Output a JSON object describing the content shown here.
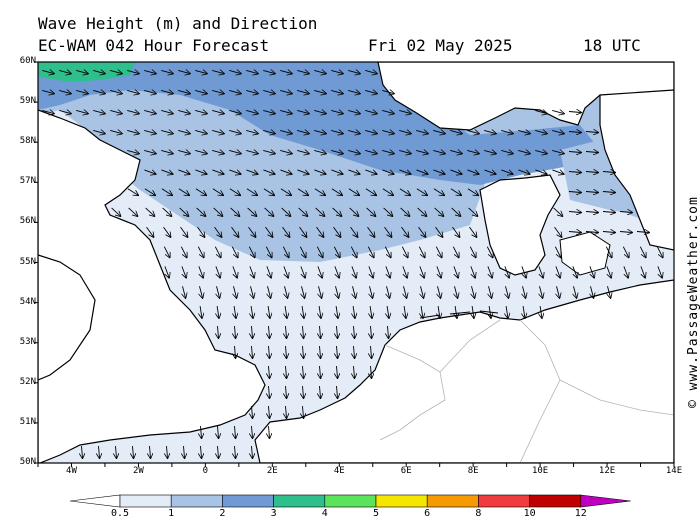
{
  "header": {
    "title": "Wave Height (m) and Direction",
    "model": "EC-WAM 042 Hour Forecast",
    "date": "Fri 02 May 2025",
    "time": "18 UTC"
  },
  "map": {
    "lat_labels": [
      "60N",
      "59N",
      "58N",
      "57N",
      "56N",
      "55N",
      "54N",
      "53N",
      "52N",
      "51N",
      "50N"
    ],
    "lon_labels": [
      "4W",
      "2W",
      "0",
      "2E",
      "4E",
      "6E",
      "8E",
      "10E",
      "12E",
      "14E"
    ],
    "extent": {
      "lon_min": -5,
      "lon_max": 14,
      "lat_min": 50,
      "lat_max": 60
    },
    "colors": {
      "sea_lightest": "#e4ecf7",
      "sea_light": "#a9c3e4",
      "sea_mid": "#6f9ad4",
      "sea_teal": "#2ebf8c",
      "land": "#ffffff",
      "coast": "#000000",
      "border": "#b4b4b4"
    }
  },
  "colorbar": {
    "ticks": [
      "0.5",
      "1",
      "2",
      "3",
      "4",
      "5",
      "6",
      "8",
      "10",
      "12"
    ],
    "colors": [
      "#e4ecf7",
      "#a9c3e4",
      "#6f9ad4",
      "#2ebf8c",
      "#5be35b",
      "#f5e600",
      "#f59a00",
      "#f03c3c",
      "#c00000",
      "#c000c0"
    ]
  },
  "copyright": "© www.PassageWeather.com"
}
